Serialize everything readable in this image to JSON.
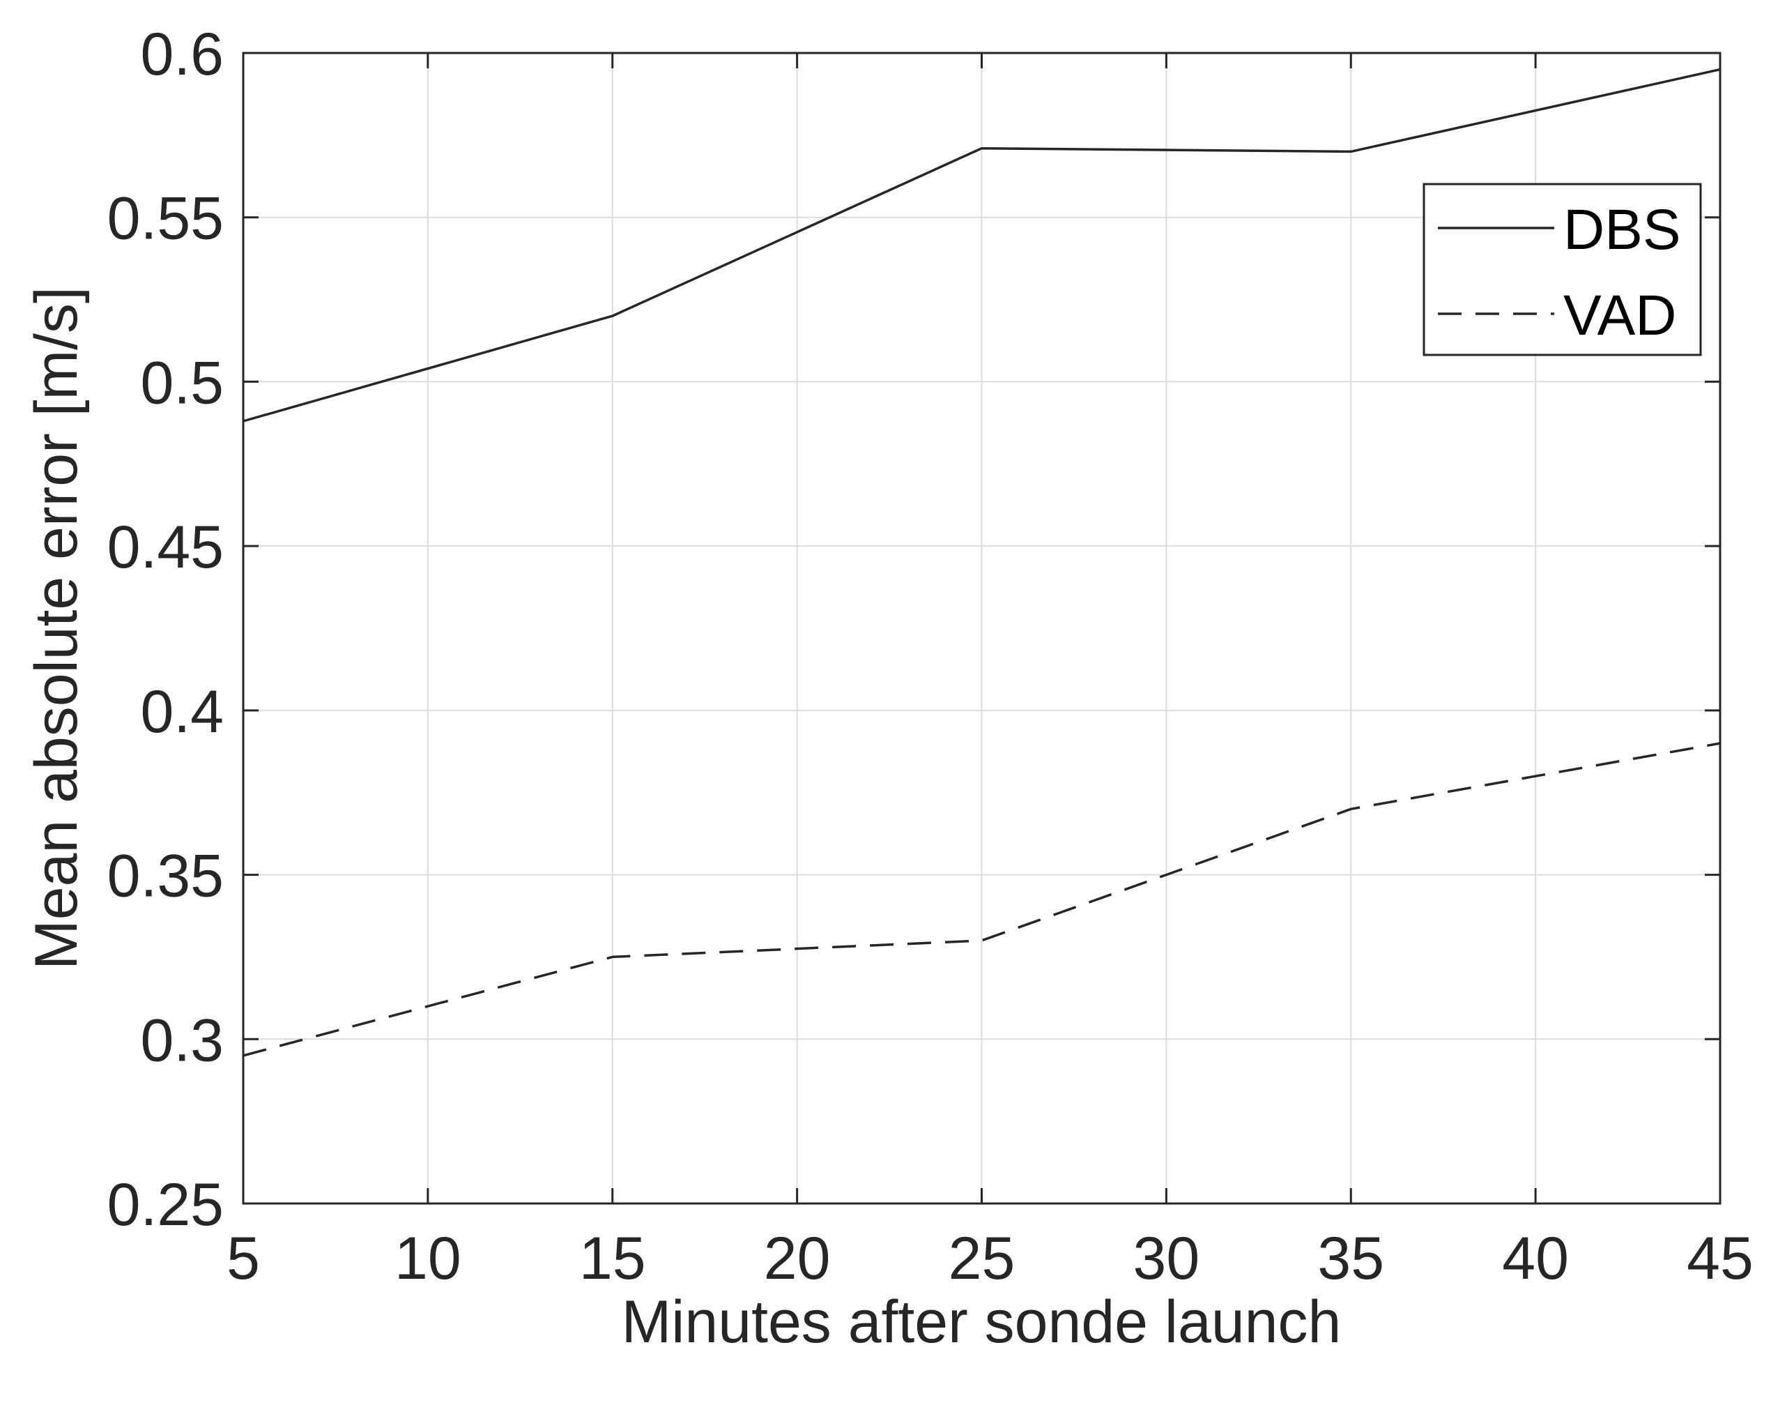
{
  "chart_data": {
    "type": "line",
    "title": "",
    "xlabel": "Minutes after sonde launch",
    "ylabel": "Mean absolute error  [m/s]",
    "xlim": [
      5,
      45
    ],
    "ylim": [
      0.25,
      0.6
    ],
    "xticks": [
      5,
      10,
      15,
      20,
      25,
      30,
      35,
      40,
      45
    ],
    "yticks": [
      0.25,
      0.3,
      0.35,
      0.4,
      0.45,
      0.5,
      0.55,
      0.6
    ],
    "ytick_labels": [
      "0.25",
      "0.3",
      "0.35",
      "0.4",
      "0.45",
      "0.5",
      "0.55",
      "0.6"
    ],
    "grid": true,
    "legend_position": "upper-right",
    "x": [
      5,
      15,
      25,
      35,
      45
    ],
    "series": [
      {
        "name": "DBS",
        "style": "solid",
        "color": "#262626",
        "values": [
          0.488,
          0.52,
          0.571,
          0.57,
          0.595
        ]
      },
      {
        "name": "VAD",
        "style": "dashed",
        "color": "#262626",
        "values": [
          0.295,
          0.325,
          0.33,
          0.37,
          0.39
        ]
      }
    ]
  },
  "colors": {
    "axis": "#262626",
    "grid": "#dcdcdc",
    "ylabel_first_letter": "#1a1a1a",
    "ylabel_accent": "#8a4b00"
  }
}
